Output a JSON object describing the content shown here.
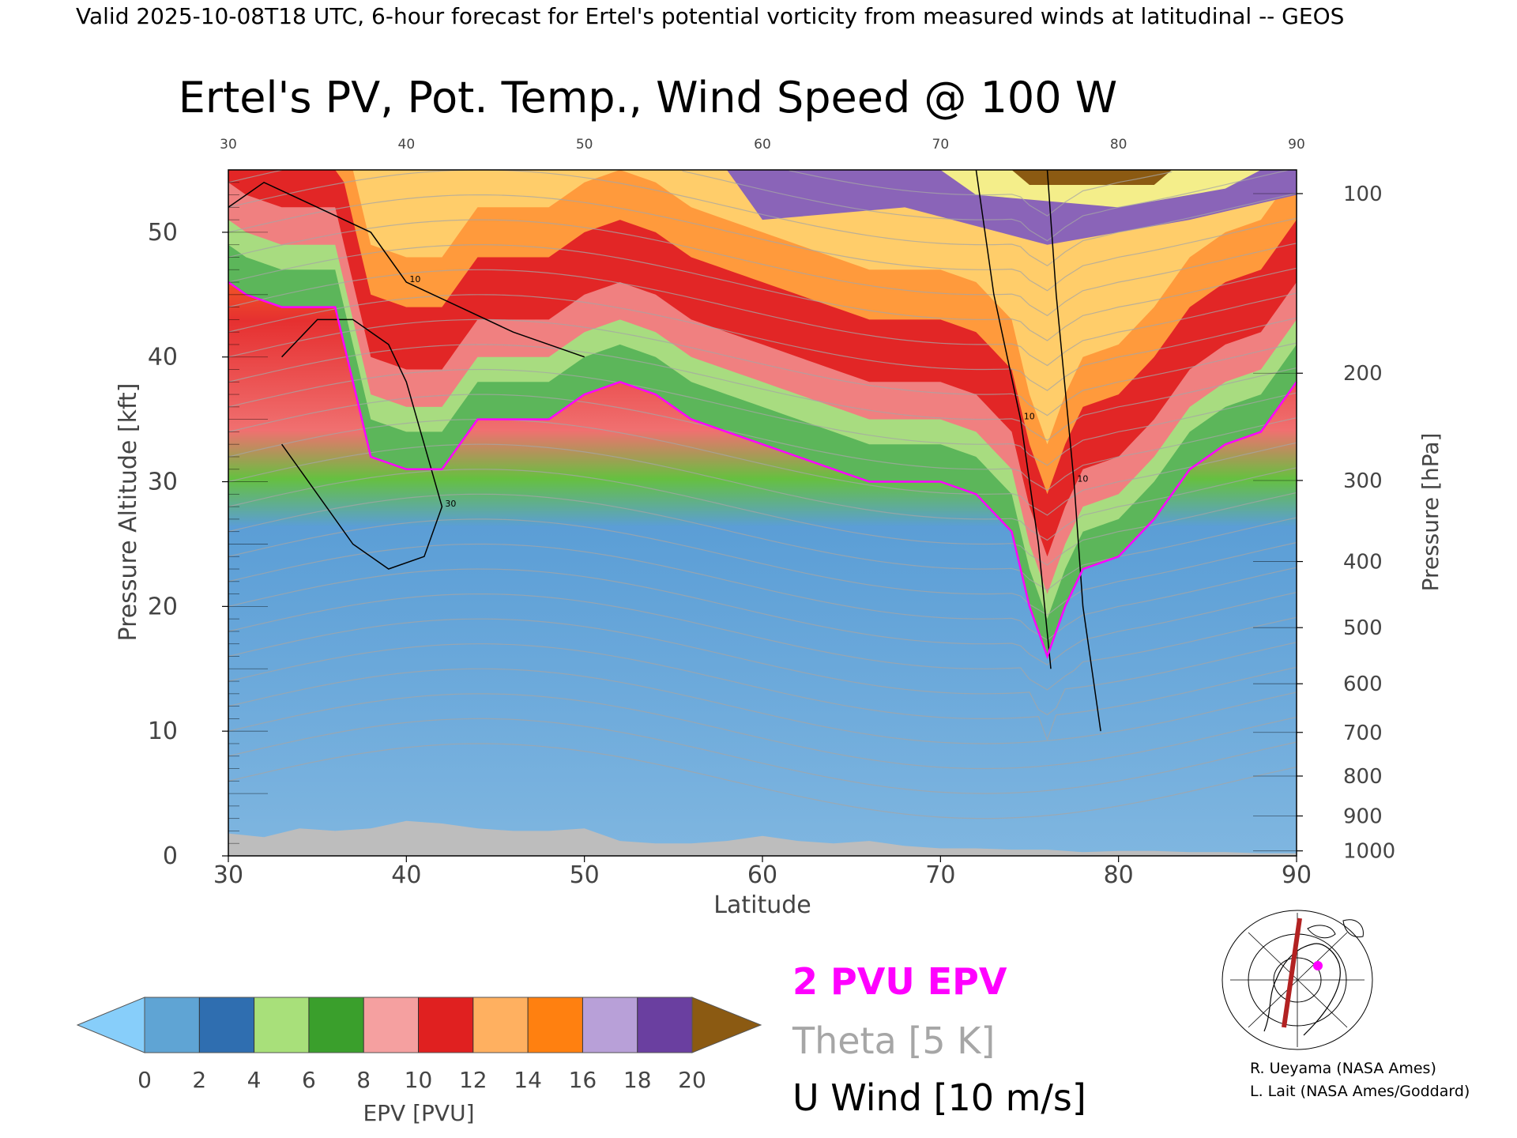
{
  "header": "Valid 2025-10-08T18 UTC, 6-hour forecast for Ertel's potential vorticity from measured winds at latitudinal -- GEOS",
  "colors": {
    "pv_contour": "#ff00ff",
    "theta_contour": "#a6a6a6",
    "wind_contour": "#000000",
    "terrain": "#bdbdbd",
    "map_path": "#b22222",
    "map_marker": "#ff00ff"
  },
  "chart_data": {
    "type": "heatmap",
    "title": "Ertel's PV, Pot. Temp., Wind Speed @ 100 W",
    "xlabel": "Latitude",
    "ylabel": "Pressure Altitude [kft]",
    "y2label": "Pressure [hPa]",
    "xlim": [
      30,
      90
    ],
    "ylim": [
      0,
      55
    ],
    "x_ticks": [
      "30",
      "40",
      "50",
      "60",
      "70",
      "80",
      "90"
    ],
    "y_ticks": [
      "0",
      "10",
      "20",
      "30",
      "40",
      "50"
    ],
    "pressure_ticks": [
      {
        "label": "100",
        "kft": 53.1
      },
      {
        "label": "200",
        "kft": 38.7
      },
      {
        "label": "300",
        "kft": 30.1
      },
      {
        "label": "400",
        "kft": 23.6
      },
      {
        "label": "500",
        "kft": 18.3
      },
      {
        "label": "600",
        "kft": 13.8
      },
      {
        "label": "700",
        "kft": 9.9
      },
      {
        "label": "800",
        "kft": 6.4
      },
      {
        "label": "900",
        "kft": 3.2
      },
      {
        "label": "1000",
        "kft": 0.4
      }
    ],
    "tropopause_2pvu": {
      "lat": [
        30,
        31,
        33,
        36,
        38,
        40,
        42,
        44,
        46,
        48,
        50,
        52,
        54,
        56,
        58,
        60,
        62,
        64,
        66,
        68,
        70,
        72,
        74,
        75,
        76,
        77,
        78,
        80,
        82,
        84,
        86,
        88,
        90
      ],
      "kft": [
        46,
        45,
        44,
        44,
        32,
        31,
        31,
        35,
        35,
        35,
        37,
        38,
        37,
        35,
        34,
        33,
        32,
        31,
        30,
        30,
        30,
        29,
        26,
        20,
        16,
        20,
        23,
        24,
        27,
        31,
        33,
        34,
        38
      ]
    },
    "wind_contours": [
      {
        "label": "10",
        "lat": [
          30,
          32,
          35,
          38,
          40,
          43,
          46,
          48,
          50
        ],
        "kft": [
          52,
          54,
          52,
          50,
          46,
          44,
          42,
          41,
          40
        ]
      },
      {
        "label": "30",
        "lat": [
          33,
          35,
          37,
          39,
          40,
          41,
          42,
          41,
          39,
          37,
          35,
          33
        ],
        "kft": [
          40,
          43,
          43,
          41,
          38,
          33,
          28,
          24,
          23,
          25,
          29,
          33
        ]
      },
      {
        "label": "10",
        "lat": [
          76,
          76.5,
          77.5,
          78,
          79
        ],
        "kft": [
          55,
          45,
          30,
          20,
          10
        ]
      },
      {
        "label": "10",
        "lat": [
          72,
          73,
          74.5,
          75.5,
          76.2
        ],
        "kft": [
          55,
          45,
          35,
          25,
          15
        ]
      }
    ],
    "terrain_kft": {
      "lat": [
        30,
        32,
        34,
        36,
        38,
        40,
        42,
        44,
        46,
        48,
        50,
        52,
        54,
        56,
        58,
        60,
        62,
        64,
        66,
        68,
        70,
        72,
        74,
        76,
        78,
        80,
        82,
        84,
        86,
        88,
        90
      ],
      "kft": [
        1.8,
        1.5,
        2.2,
        2.0,
        2.2,
        2.8,
        2.6,
        2.2,
        2.0,
        2.0,
        2.2,
        1.2,
        1.0,
        1.0,
        1.2,
        1.6,
        1.2,
        1.0,
        1.2,
        0.8,
        0.6,
        0.6,
        0.5,
        0.5,
        0.3,
        0.4,
        0.4,
        0.3,
        0.3,
        0.2,
        0.2
      ]
    }
  },
  "colorbar": {
    "label": "EPV [PVU]",
    "ticks": [
      "0",
      "2",
      "4",
      "6",
      "8",
      "10",
      "12",
      "14",
      "16",
      "18",
      "20"
    ],
    "under_color": "#87cefa",
    "over_color": "#8b5a12",
    "colors": [
      "#5fa4d4",
      "#2f6eb0",
      "#a8e07a",
      "#3a9f2c",
      "#f5a0a0",
      "#e02020",
      "#ffb060",
      "#ff8010",
      "#b8a0d8",
      "#6a3fa0",
      "#f8f080"
    ]
  },
  "legend": {
    "pv": "2 PVU EPV",
    "theta": "Theta [5 K]",
    "wind": "U Wind [10 m/s]"
  },
  "credits": [
    "R. Ueyama (NASA Ames)",
    "L. Lait (NASA Ames/Goddard)"
  ]
}
